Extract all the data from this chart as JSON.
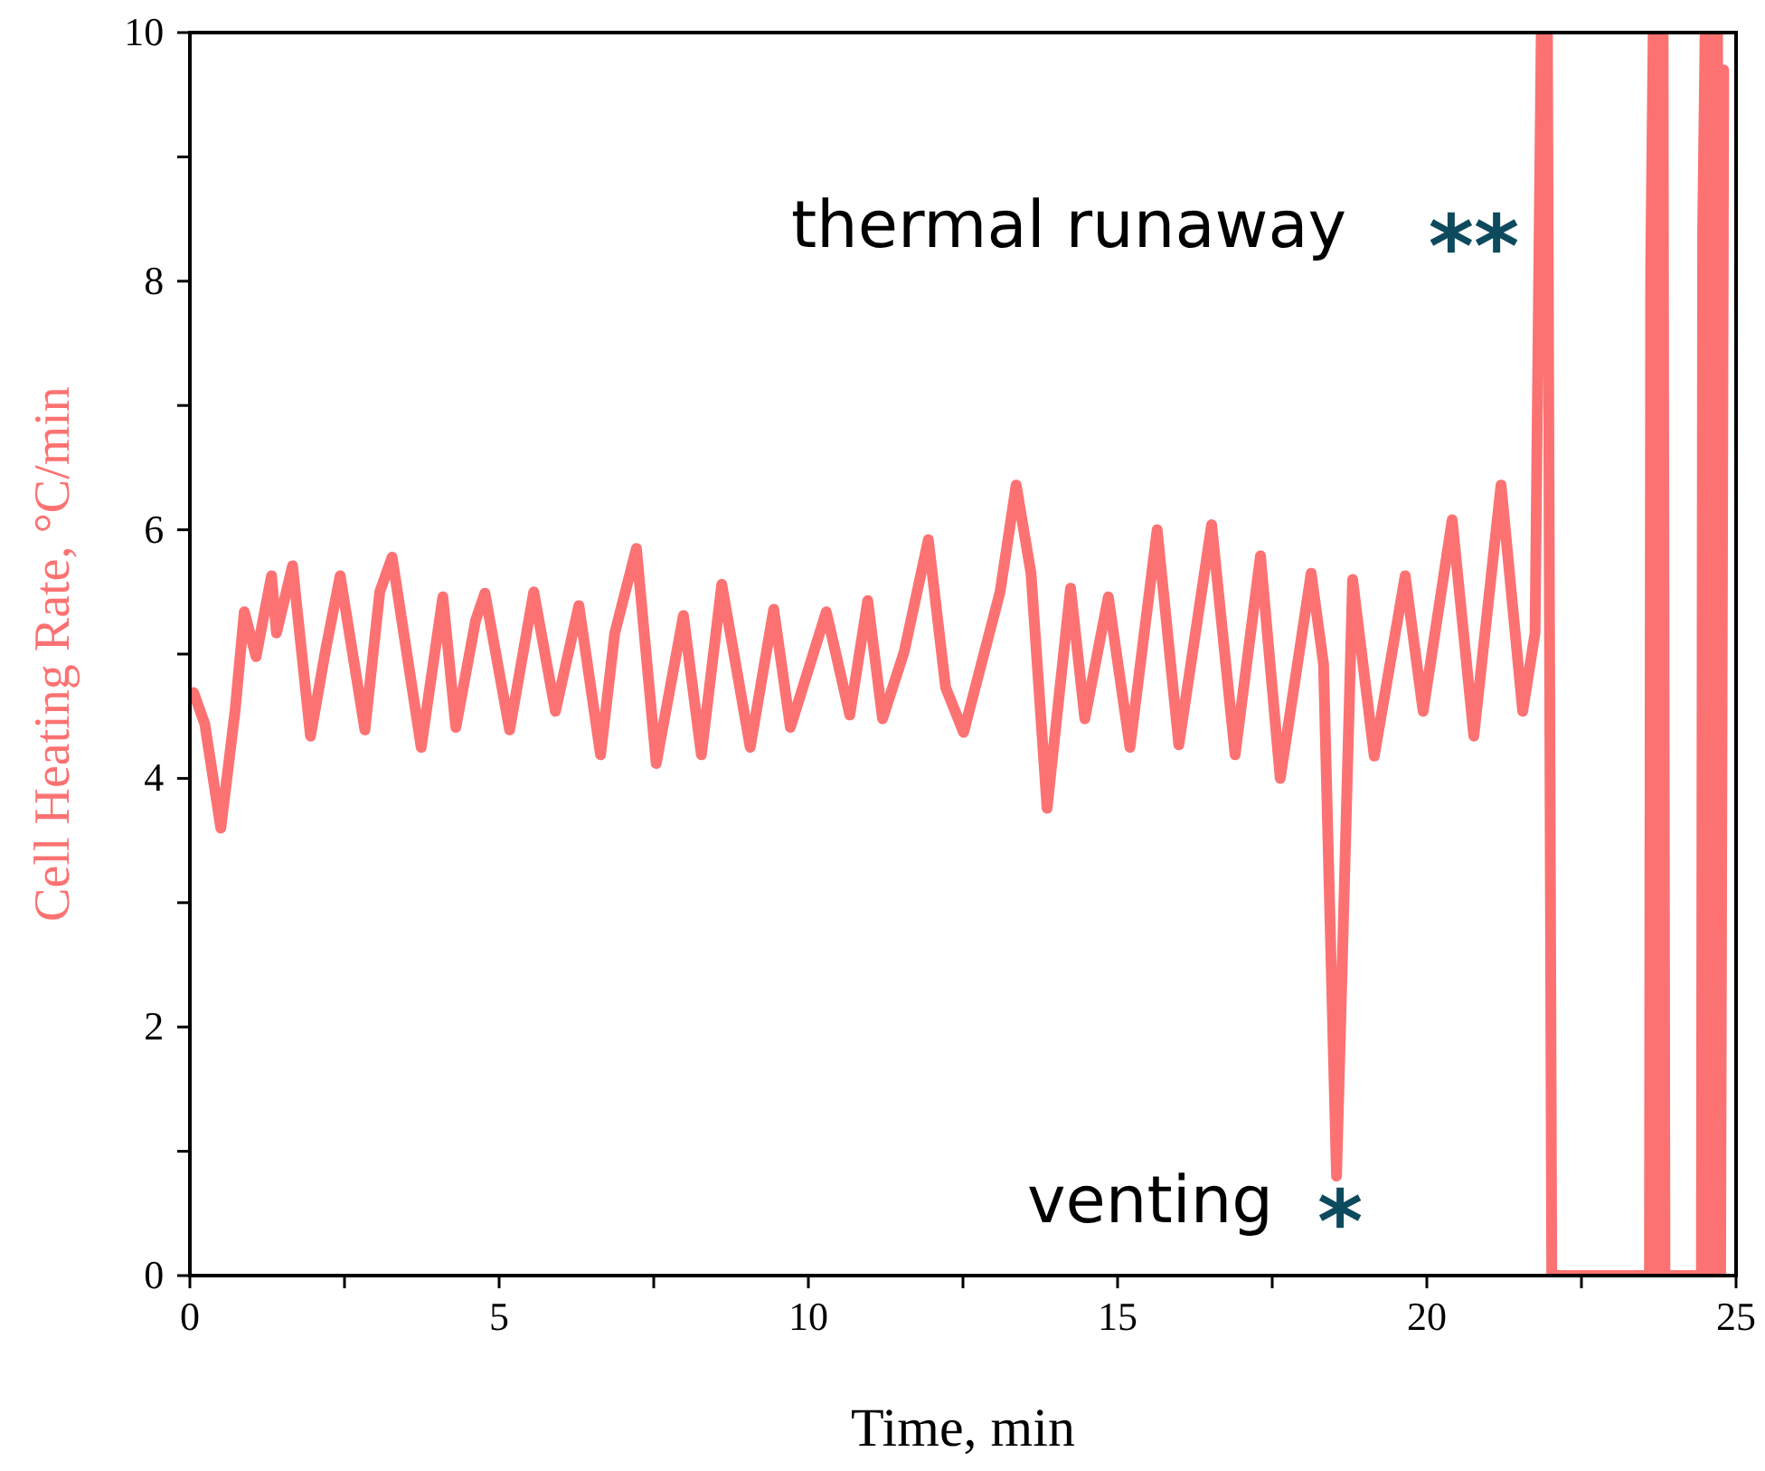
{
  "chart_data": {
    "type": "line",
    "xlabel": "Time, min",
    "ylabel": "Cell Heating Rate, °C/min",
    "xlim": [
      0,
      25
    ],
    "ylim": [
      0,
      10
    ],
    "xticks": [
      0,
      {
        "value": 2.5,
        "label": null
      },
      5,
      {
        "value": 7.5,
        "label": null
      },
      10,
      {
        "value": 12.5,
        "label": null
      },
      15,
      {
        "value": 17.5,
        "label": null
      },
      20,
      {
        "value": 22.5,
        "label": null
      },
      25
    ],
    "yticks": [
      0,
      {
        "value": 1,
        "label": null
      },
      2,
      {
        "value": 3,
        "label": null
      },
      4,
      {
        "value": 5,
        "label": null
      },
      6,
      {
        "value": 7,
        "label": null
      },
      8,
      {
        "value": 9,
        "label": null
      },
      10
    ],
    "grid": false,
    "marker": "none",
    "line_style": "solid",
    "series": [
      {
        "color": "#fc7272",
        "x": [
          0.06,
          0.24,
          0.5,
          0.73,
          0.88,
          1.07,
          1.32,
          1.4,
          1.66,
          1.95,
          2.19,
          2.43,
          2.83,
          3.07,
          3.27,
          3.74,
          4.09,
          4.3,
          4.62,
          4.77,
          5.17,
          5.56,
          5.91,
          6.29,
          6.64,
          6.87,
          7.22,
          7.54,
          7.98,
          8.27,
          8.6,
          9.06,
          9.44,
          9.71,
          10.29,
          10.67,
          10.96,
          11.2,
          11.55,
          11.94,
          12.22,
          12.51,
          13.1,
          13.36,
          13.6,
          13.86,
          14.24,
          14.47,
          14.85,
          15.2,
          15.64,
          15.99,
          16.52,
          16.9,
          17.31,
          17.63,
          18.13,
          18.33,
          18.54,
          18.8,
          19.15,
          19.65,
          19.94,
          20.41,
          20.76,
          21.2,
          21.55,
          21.75,
          21.85,
          21.95,
          22.02,
          23.6,
          23.62,
          23.66,
          23.7,
          23.74,
          23.78,
          23.82,
          23.85,
          24.44,
          24.46,
          24.5,
          24.55,
          24.6,
          24.65,
          24.7,
          24.75,
          24.8
        ],
        "values": [
          4.69,
          4.44,
          3.6,
          4.54,
          5.34,
          4.98,
          5.63,
          5.17,
          5.71,
          4.34,
          5.02,
          5.63,
          4.39,
          5.5,
          5.78,
          4.25,
          5.46,
          4.41,
          5.27,
          5.49,
          4.39,
          5.5,
          4.54,
          5.39,
          4.19,
          5.17,
          5.85,
          4.12,
          5.31,
          4.19,
          5.56,
          4.25,
          5.36,
          4.41,
          5.34,
          4.51,
          5.43,
          4.48,
          5.02,
          5.92,
          4.73,
          4.37,
          5.5,
          6.36,
          5.65,
          3.76,
          5.53,
          4.48,
          5.46,
          4.25,
          6.0,
          4.27,
          6.04,
          4.19,
          5.79,
          4,
          5.65,
          4.92,
          0.8,
          5.6,
          4.18,
          5.63,
          4.54,
          6.08,
          4.34,
          6.36,
          4.54,
          5.17,
          10,
          10,
          0,
          0,
          8.1,
          10,
          0,
          10,
          0,
          10,
          0,
          0,
          8.4,
          10,
          0,
          10,
          0,
          10,
          0,
          9.7
        ]
      }
    ],
    "annotations": [
      "venting",
      "*",
      "thermal runaway",
      "**"
    ]
  }
}
